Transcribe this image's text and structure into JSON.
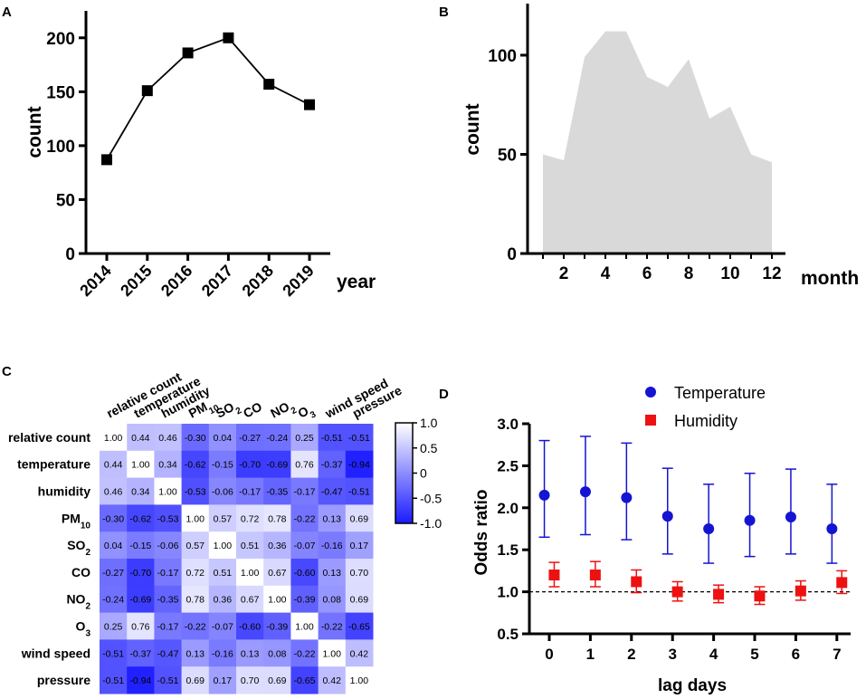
{
  "panels": {
    "A": {
      "letter": "A"
    },
    "B": {
      "letter": "B"
    },
    "C": {
      "letter": "C"
    },
    "D": {
      "letter": "D"
    }
  },
  "chart_data": [
    {
      "id": "A",
      "type": "line",
      "x": [
        "2014",
        "2015",
        "2016",
        "2017",
        "2018",
        "2019"
      ],
      "values": [
        87,
        151,
        186,
        200,
        157,
        138
      ],
      "xlabel": "year",
      "ylabel": "count",
      "ylim": [
        0,
        225
      ],
      "yticks": [
        "0",
        "50",
        "100",
        "150",
        "200"
      ],
      "color": "#000000"
    },
    {
      "id": "B",
      "type": "area",
      "x": [
        1,
        2,
        3,
        4,
        5,
        6,
        7,
        8,
        9,
        10,
        11,
        12
      ],
      "values": [
        50,
        47,
        99,
        112,
        112,
        89,
        84,
        98,
        68,
        74,
        50,
        46
      ],
      "xticks": [
        "2",
        "4",
        "6",
        "8",
        "10",
        "12"
      ],
      "yticks": [
        "0",
        "50",
        "100"
      ],
      "xlabel": "month",
      "ylabel": "count",
      "ylim": [
        0,
        126
      ],
      "color": "#d9d9d9"
    },
    {
      "id": "C",
      "type": "heatmap",
      "labels": [
        "relative count",
        "temperature",
        "humidity",
        "PM10",
        "SO2",
        "CO",
        "NO2",
        "O3",
        "wind speed",
        "pressure"
      ],
      "label_base": [
        "relative count",
        "temperature",
        "humidity",
        "PM",
        "SO",
        "CO",
        "NO",
        "O",
        "wind speed",
        "pressure"
      ],
      "label_sub": [
        "",
        "",
        "",
        "10",
        "2",
        "",
        "2",
        "3",
        "",
        ""
      ],
      "matrix": [
        [
          "1.00",
          "0.44",
          "0.46",
          "-0.30",
          "0.04",
          "-0.27",
          "-0.24",
          "0.25",
          "-0.51",
          "-0.51"
        ],
        [
          "0.44",
          "1.00",
          "0.34",
          "-0.62",
          "-0.15",
          "-0.70",
          "-0.69",
          "0.76",
          "-0.37",
          "-0.94"
        ],
        [
          "0.46",
          "0.34",
          "1.00",
          "-0.53",
          "-0.06",
          "-0.17",
          "-0.35",
          "-0.17",
          "-0.47",
          "-0.51"
        ],
        [
          "-0.30",
          "-0.62",
          "-0.53",
          "1.00",
          "0.57",
          "0.72",
          "0.78",
          "-0.22",
          "0.13",
          "0.69"
        ],
        [
          "0.04",
          "-0.15",
          "-0.06",
          "0.57",
          "1.00",
          "0.51",
          "0.36",
          "-0.07",
          "-0.16",
          "0.17"
        ],
        [
          "-0.27",
          "-0.70",
          "-0.17",
          "0.72",
          "0.51",
          "1.00",
          "0.67",
          "-0.60",
          "0.13",
          "0.70"
        ],
        [
          "-0.24",
          "-0.69",
          "-0.35",
          "0.78",
          "0.36",
          "0.67",
          "1.00",
          "-0.39",
          "0.08",
          "0.69"
        ],
        [
          "0.25",
          "0.76",
          "-0.17",
          "-0.22",
          "-0.07",
          "-0.60",
          "-0.39",
          "1.00",
          "-0.22",
          "-0.65"
        ],
        [
          "-0.51",
          "-0.37",
          "-0.47",
          "0.13",
          "-0.16",
          "0.13",
          "0.08",
          "-0.22",
          "1.00",
          "0.42"
        ],
        [
          "-0.51",
          "-0.94",
          "-0.51",
          "0.69",
          "0.17",
          "0.70",
          "0.69",
          "-0.65",
          "0.42",
          "1.00"
        ]
      ],
      "colorbar_ticks": [
        "1.0",
        "0.5",
        "0",
        "-0.5",
        "-1.0"
      ],
      "colorbar_values": [
        1.0,
        0.5,
        0,
        -0.5,
        -1.0
      ],
      "vmin": -1.0,
      "vmax": 1.0,
      "color_low": "#1a1aff",
      "color_high": "#ffffff"
    },
    {
      "id": "D",
      "type": "scatter",
      "x": [
        0,
        1,
        2,
        3,
        4,
        5,
        6,
        7
      ],
      "xticks": [
        "0",
        "1",
        "2",
        "3",
        "4",
        "5",
        "6",
        "7"
      ],
      "yticks": [
        "0.5",
        "1.0",
        "1.5",
        "2.0",
        "2.5",
        "3.0"
      ],
      "xlabel": "lag days",
      "ylabel": "Odds ratio",
      "ylim": [
        0.5,
        3.0
      ],
      "reference_line": 1.0,
      "series": [
        {
          "name": "Temperature",
          "color": "#1414d2",
          "marker": "circle",
          "offset": -0.12,
          "values": [
            2.15,
            2.19,
            2.12,
            1.9,
            1.75,
            1.85,
            1.89,
            1.75
          ],
          "lower": [
            1.65,
            1.68,
            1.62,
            1.45,
            1.34,
            1.42,
            1.45,
            1.34
          ],
          "upper": [
            2.8,
            2.85,
            2.77,
            2.47,
            2.28,
            2.41,
            2.46,
            2.28
          ]
        },
        {
          "name": "Humidity",
          "color": "#ee1111",
          "marker": "square",
          "offset": 0.12,
          "values": [
            1.2,
            1.2,
            1.12,
            1.0,
            0.97,
            0.95,
            1.01,
            1.11
          ],
          "lower": [
            1.06,
            1.06,
            0.99,
            0.89,
            0.87,
            0.85,
            0.9,
            0.98
          ],
          "upper": [
            1.35,
            1.36,
            1.26,
            1.12,
            1.08,
            1.06,
            1.13,
            1.25
          ]
        }
      ]
    }
  ]
}
